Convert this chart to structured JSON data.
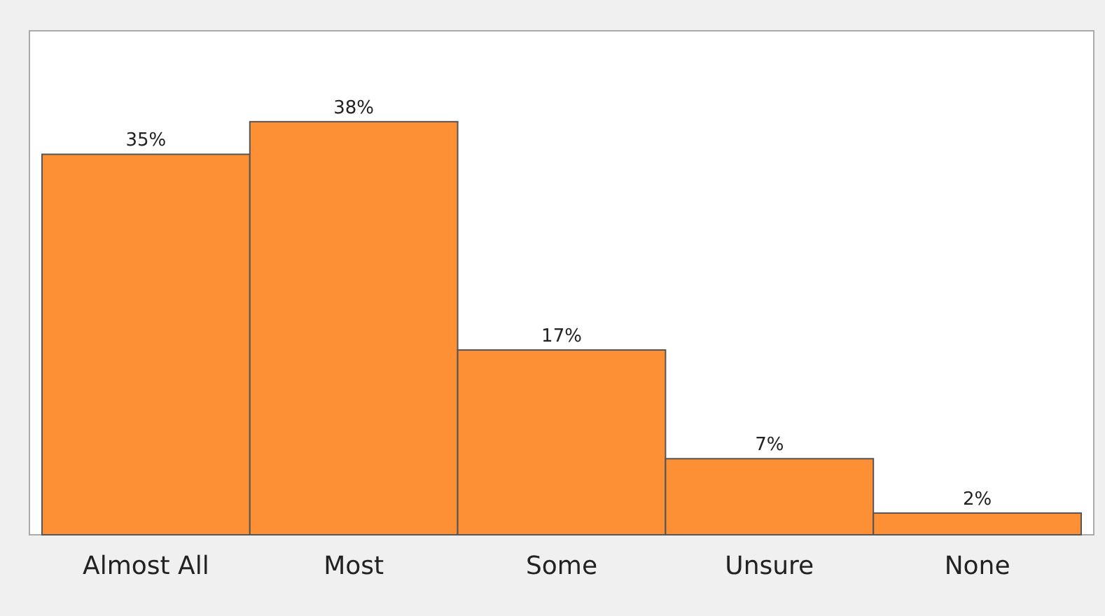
{
  "chart_data": {
    "type": "bar",
    "categories": [
      "Almost All",
      "Most",
      "Some",
      "Unsure",
      "None"
    ],
    "values": [
      35,
      38,
      17,
      7,
      2
    ],
    "value_labels": [
      "35%",
      "38%",
      "17%",
      "7%",
      "2%"
    ],
    "color": "#fd8f35",
    "grid": false
  }
}
